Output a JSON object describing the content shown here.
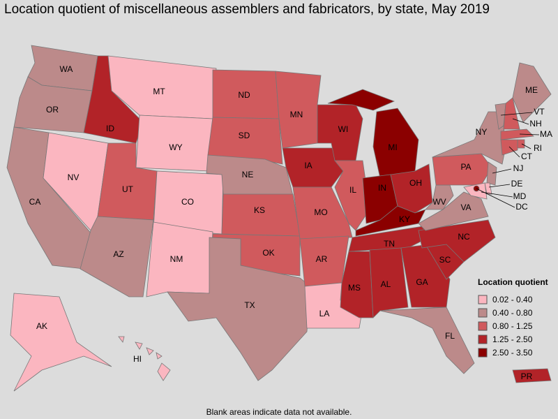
{
  "title": "Location quotient of miscellaneous assemblers and fabricators, by state, May 2019",
  "footnote": "Blank areas indicate data not available.",
  "legend": {
    "title": "Location quotient",
    "items": [
      {
        "label": "0.02 - 0.40",
        "color": "#fbb6c0"
      },
      {
        "label": "0.40 - 0.80",
        "color": "#bc8a8a"
      },
      {
        "label": "0.80 - 1.25",
        "color": "#d05a5d"
      },
      {
        "label": "1.25 - 2.50",
        "color": "#b22328"
      },
      {
        "label": "2.50 - 3.50",
        "color": "#8b0000"
      }
    ]
  },
  "states": [
    {
      "label": "WA",
      "color": "#bc8a8a"
    },
    {
      "label": "OR",
      "color": "#bc8a8a"
    },
    {
      "label": "CA",
      "color": "#bc8a8a"
    },
    {
      "label": "NV",
      "color": "#fbb6c0"
    },
    {
      "label": "ID",
      "color": "#b22328"
    },
    {
      "label": "MT",
      "color": "#fbb6c0"
    },
    {
      "label": "WY",
      "color": "#fbb6c0"
    },
    {
      "label": "UT",
      "color": "#d05a5d"
    },
    {
      "label": "CO",
      "color": "#fbb6c0"
    },
    {
      "label": "AZ",
      "color": "#bc8a8a"
    },
    {
      "label": "NM",
      "color": "#fbb6c0"
    },
    {
      "label": "ND",
      "color": "#d05a5d"
    },
    {
      "label": "SD",
      "color": "#d05a5d"
    },
    {
      "label": "NE",
      "color": "#bc8a8a"
    },
    {
      "label": "KS",
      "color": "#d05a5d"
    },
    {
      "label": "OK",
      "color": "#d05a5d"
    },
    {
      "label": "TX",
      "color": "#bc8a8a"
    },
    {
      "label": "MN",
      "color": "#d05a5d"
    },
    {
      "label": "IA",
      "color": "#b22328"
    },
    {
      "label": "MO",
      "color": "#d05a5d"
    },
    {
      "label": "AR",
      "color": "#d05a5d"
    },
    {
      "label": "LA",
      "color": "#fbb6c0"
    },
    {
      "label": "WI",
      "color": "#b22328"
    },
    {
      "label": "IL",
      "color": "#d05a5d"
    },
    {
      "label": "MI",
      "color": "#8b0000"
    },
    {
      "label": "IN",
      "color": "#8b0000"
    },
    {
      "label": "OH",
      "color": "#b22328"
    },
    {
      "label": "KY",
      "color": "#8b0000"
    },
    {
      "label": "TN",
      "color": "#b22328"
    },
    {
      "label": "MS",
      "color": "#b22328"
    },
    {
      "label": "AL",
      "color": "#b22328"
    },
    {
      "label": "GA",
      "color": "#b22328"
    },
    {
      "label": "FL",
      "color": "#bc8a8a"
    },
    {
      "label": "SC",
      "color": "#b22328"
    },
    {
      "label": "NC",
      "color": "#b22328"
    },
    {
      "label": "VA",
      "color": "#bc8a8a"
    },
    {
      "label": "WV",
      "color": "#bc8a8a"
    },
    {
      "label": "PA",
      "color": "#d05a5d"
    },
    {
      "label": "NY",
      "color": "#bc8a8a"
    },
    {
      "label": "VT",
      "color": "#bc8a8a"
    },
    {
      "label": "NH",
      "color": "#d05a5d"
    },
    {
      "label": "ME",
      "color": "#bc8a8a"
    },
    {
      "label": "MA",
      "color": "#d05a5d"
    },
    {
      "label": "RI",
      "color": "#d05a5d"
    },
    {
      "label": "CT",
      "color": "#d05a5d"
    },
    {
      "label": "NJ",
      "color": "#bc8a8a"
    },
    {
      "label": "DE",
      "color": "#fbb6c0"
    },
    {
      "label": "MD",
      "color": "#fbb6c0"
    },
    {
      "label": "DC",
      "color": "#8b0000"
    },
    {
      "label": "AK",
      "color": "#fbb6c0"
    },
    {
      "label": "HI",
      "color": "#fbb6c0"
    },
    {
      "label": "PR",
      "color": "#b22328"
    }
  ]
}
